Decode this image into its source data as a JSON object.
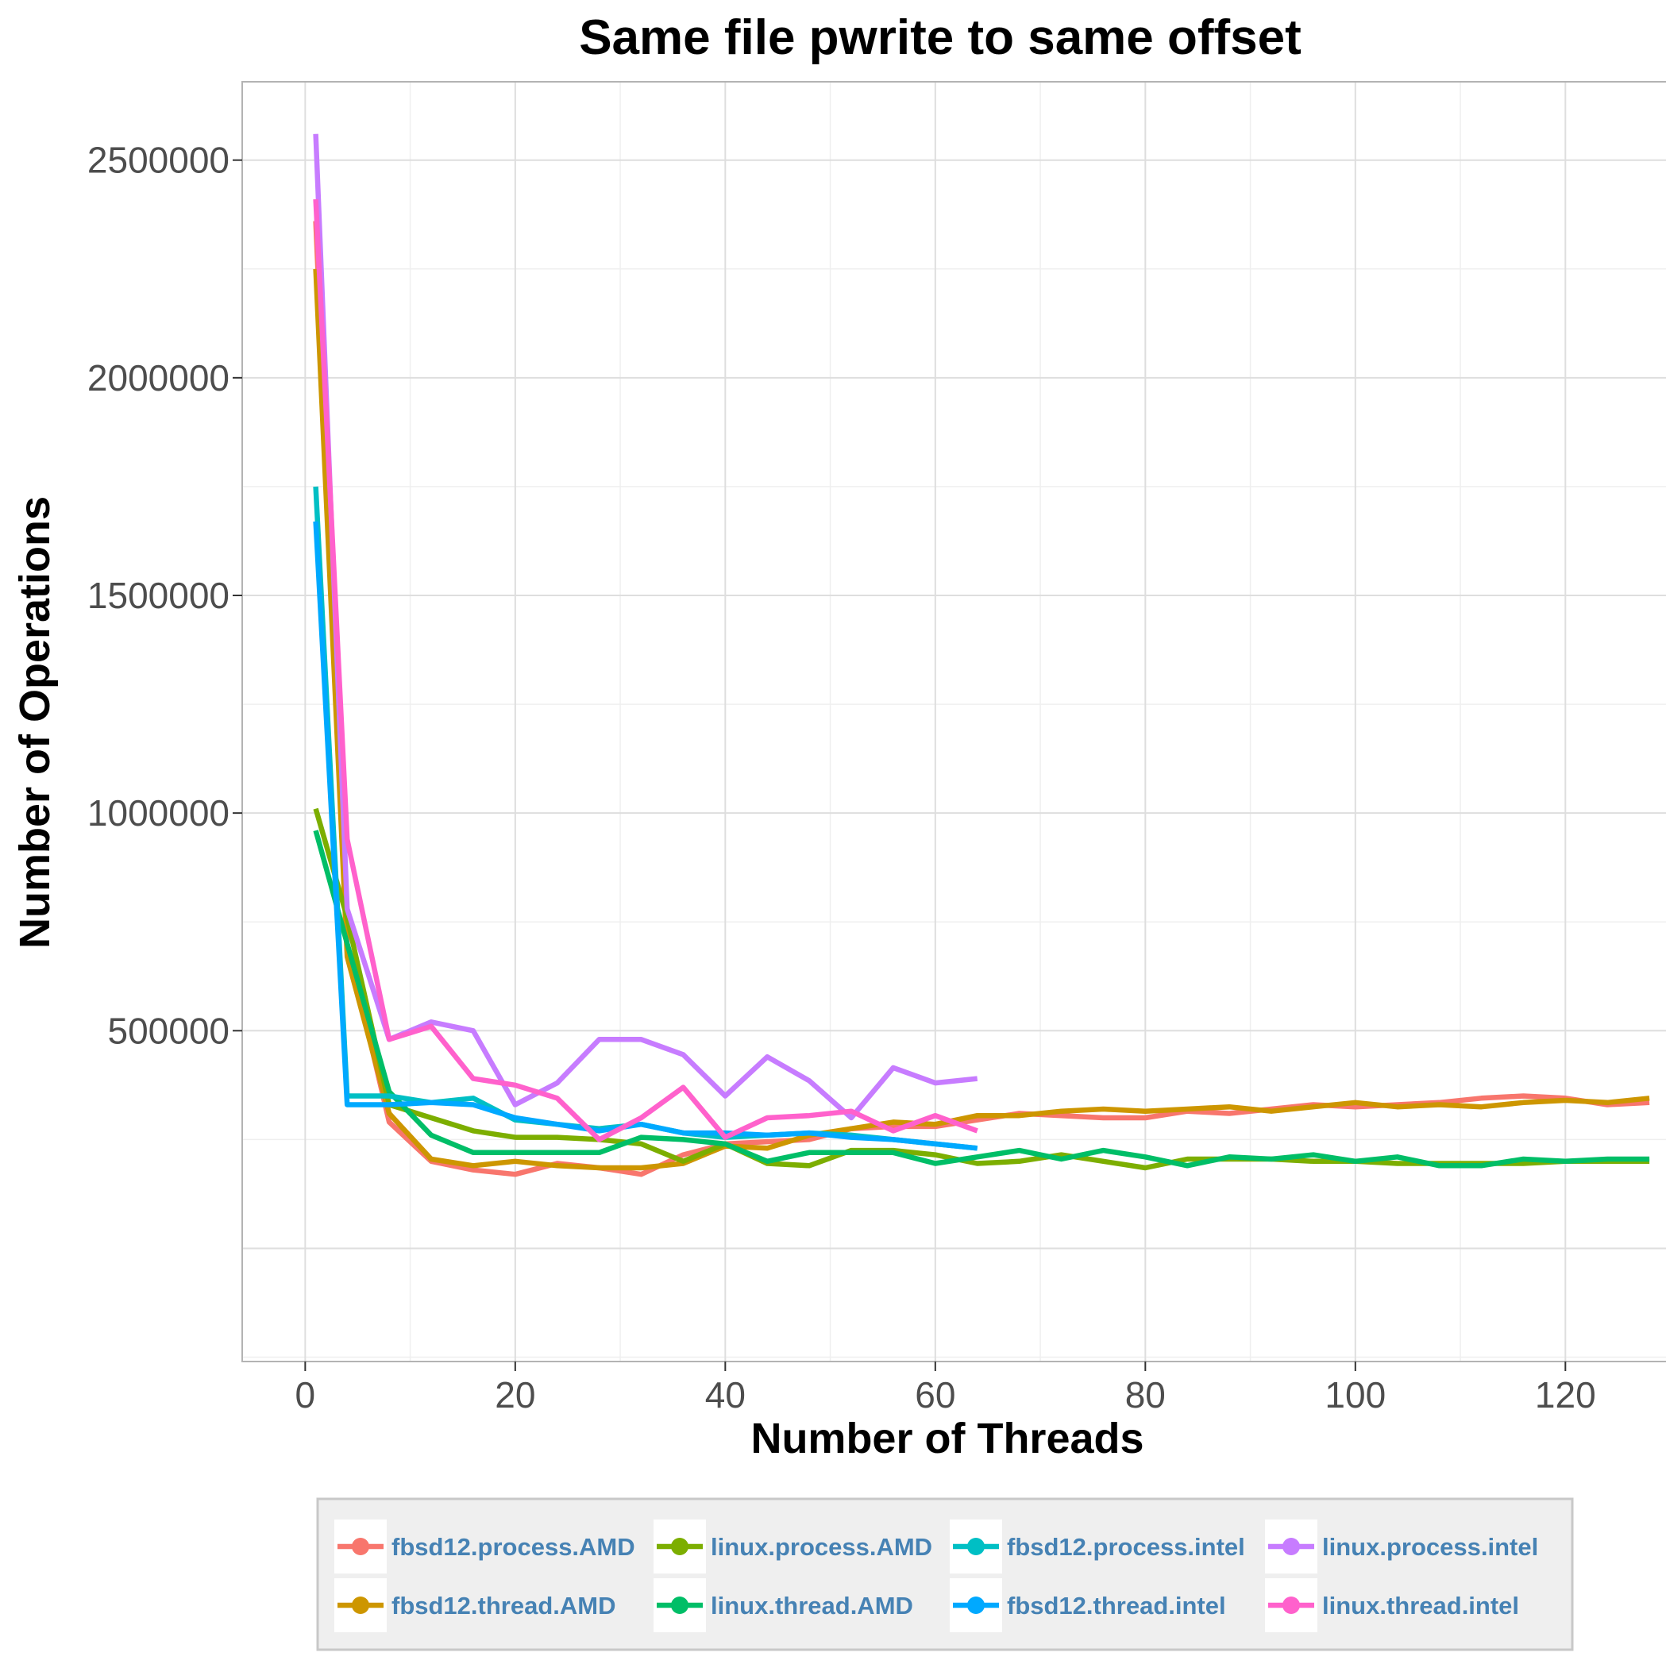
{
  "chart_data": {
    "type": "line",
    "title": "Same file pwrite to same offset",
    "xlabel": "Number of Threads",
    "ylabel": "Number of Operations",
    "xlim": [
      -6,
      132
    ],
    "ylim": [
      -260000,
      2680000
    ],
    "xticks": [
      0,
      20,
      40,
      60,
      80,
      100,
      120
    ],
    "xtick_labels": [
      "0",
      "20",
      "40",
      "60",
      "80",
      "100",
      "120"
    ],
    "yticks": [
      500000,
      1000000,
      1500000,
      2000000,
      2500000
    ],
    "ytick_labels": [
      "500000",
      "1000000",
      "1500000",
      "2000000",
      "2500000"
    ],
    "grid": true,
    "legend_position": "bottom",
    "series": [
      {
        "name": "fbsd12.process.AMD",
        "color": "#F8766D",
        "x": [
          1,
          4,
          8,
          12,
          16,
          20,
          24,
          28,
          32,
          36,
          40,
          44,
          48,
          52,
          56,
          60,
          64,
          68,
          72,
          76,
          80,
          84,
          88,
          92,
          96,
          100,
          104,
          108,
          112,
          116,
          120,
          124,
          128
        ],
        "y": [
          2360000,
          700000,
          290000,
          200000,
          180000,
          170000,
          195000,
          185000,
          170000,
          215000,
          240000,
          245000,
          250000,
          275000,
          280000,
          280000,
          295000,
          310000,
          305000,
          300000,
          300000,
          315000,
          310000,
          320000,
          330000,
          325000,
          330000,
          335000,
          345000,
          350000,
          345000,
          330000,
          335000
        ]
      },
      {
        "name": "fbsd12.thread.AMD",
        "color": "#CD9600",
        "x": [
          1,
          4,
          8,
          12,
          16,
          20,
          24,
          28,
          32,
          36,
          40,
          44,
          48,
          52,
          56,
          60,
          64,
          68,
          72,
          76,
          80,
          84,
          88,
          92,
          96,
          100,
          104,
          108,
          112,
          116,
          120,
          124,
          128
        ],
        "y": [
          2250000,
          670000,
          310000,
          205000,
          190000,
          200000,
          190000,
          185000,
          185000,
          195000,
          235000,
          230000,
          260000,
          275000,
          290000,
          285000,
          305000,
          305000,
          315000,
          320000,
          315000,
          320000,
          325000,
          315000,
          325000,
          335000,
          325000,
          330000,
          325000,
          335000,
          340000,
          335000,
          345000
        ]
      },
      {
        "name": "linux.process.AMD",
        "color": "#7CAE00",
        "x": [
          1,
          4,
          8,
          12,
          16,
          20,
          24,
          28,
          32,
          36,
          40,
          44,
          48,
          52,
          56,
          60,
          64,
          68,
          72,
          76,
          80,
          84,
          88,
          92,
          96,
          100,
          104,
          108,
          112,
          116,
          120,
          124,
          128
        ],
        "y": [
          1010000,
          760000,
          330000,
          300000,
          270000,
          255000,
          255000,
          250000,
          240000,
          200000,
          240000,
          195000,
          190000,
          225000,
          225000,
          215000,
          195000,
          200000,
          215000,
          200000,
          185000,
          205000,
          205000,
          205000,
          200000,
          200000,
          195000,
          195000,
          195000,
          195000,
          200000,
          200000,
          200000
        ]
      },
      {
        "name": "linux.thread.AMD",
        "color": "#00BE67",
        "x": [
          1,
          4,
          8,
          12,
          16,
          20,
          24,
          28,
          32,
          36,
          40,
          44,
          48,
          52,
          56,
          60,
          64,
          68,
          72,
          76,
          80,
          84,
          88,
          92,
          96,
          100,
          104,
          108,
          112,
          116,
          120,
          124,
          128
        ],
        "y": [
          960000,
          700000,
          360000,
          260000,
          220000,
          220000,
          220000,
          220000,
          255000,
          250000,
          240000,
          200000,
          220000,
          220000,
          220000,
          195000,
          210000,
          225000,
          205000,
          225000,
          210000,
          190000,
          210000,
          205000,
          215000,
          200000,
          210000,
          190000,
          190000,
          205000,
          200000,
          205000,
          205000
        ]
      },
      {
        "name": "fbsd12.process.intel",
        "color": "#00BFC4",
        "x": [
          1,
          4,
          8,
          12,
          16,
          20,
          24,
          28,
          32,
          36,
          40,
          44,
          48,
          52,
          56,
          60,
          64
        ],
        "y": [
          1750000,
          350000,
          350000,
          335000,
          345000,
          295000,
          285000,
          275000,
          285000,
          265000,
          255000,
          260000,
          265000,
          260000,
          250000,
          240000,
          230000
        ]
      },
      {
        "name": "fbsd12.thread.intel",
        "color": "#00A9FF",
        "x": [
          1,
          4,
          8,
          12,
          16,
          20,
          24,
          28,
          32,
          36,
          40,
          44,
          48,
          52,
          56,
          60,
          64
        ],
        "y": [
          1670000,
          330000,
          330000,
          335000,
          330000,
          300000,
          285000,
          270000,
          285000,
          265000,
          265000,
          260000,
          265000,
          255000,
          250000,
          240000,
          230000
        ]
      },
      {
        "name": "linux.process.intel",
        "color": "#C77CFF",
        "x": [
          1,
          4,
          8,
          12,
          16,
          20,
          24,
          28,
          32,
          36,
          40,
          44,
          48,
          52,
          56,
          60,
          64
        ],
        "y": [
          2560000,
          780000,
          480000,
          520000,
          500000,
          330000,
          380000,
          480000,
          480000,
          445000,
          350000,
          440000,
          385000,
          300000,
          415000,
          380000,
          390000
        ]
      },
      {
        "name": "linux.thread.intel",
        "color": "#FF61CC",
        "x": [
          1,
          4,
          8,
          12,
          16,
          20,
          24,
          28,
          32,
          36,
          40,
          44,
          48,
          52,
          56,
          60,
          64
        ],
        "y": [
          2410000,
          940000,
          480000,
          510000,
          390000,
          375000,
          345000,
          250000,
          300000,
          370000,
          255000,
          300000,
          305000,
          315000,
          270000,
          305000,
          270000
        ]
      }
    ]
  }
}
